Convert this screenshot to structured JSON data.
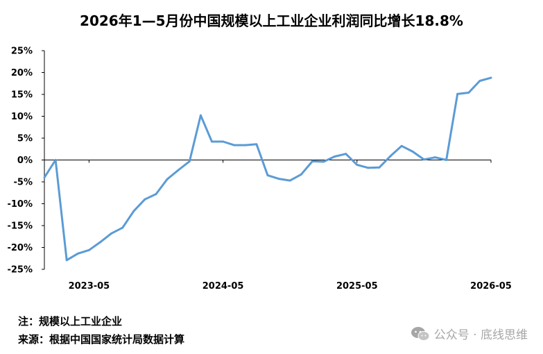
{
  "title": "2026年1—5月份中国规模以上工业企业利润同比增长18.8%",
  "note": "注：规模以上工业企业",
  "source": "来源：根据中国国家统计局数据计算",
  "watermark": {
    "text": "公众号 · 底线思维",
    "icon": "wechat-icon"
  },
  "chart_data": {
    "type": "line",
    "title": "2026年1—5月份中国规模以上工业企业利润同比增长18.8%",
    "xlabel": "",
    "ylabel": "",
    "x_tick_labels": [
      "2023-05",
      "2024-05",
      "2025-05",
      "2026-05"
    ],
    "y_ticks": [
      25,
      20,
      15,
      10,
      5,
      0,
      -5,
      -10,
      -15,
      -20,
      -25
    ],
    "y_tick_labels": [
      "25%",
      "20%",
      "15%",
      "10%",
      "5%",
      "0%",
      "-5%",
      "-10%",
      "-15%",
      "-20%",
      "-25%"
    ],
    "ylim": [
      -25,
      25
    ],
    "unit": "%",
    "grid": false,
    "color": "#5b9bd5",
    "x": [
      "2023-01",
      "2023-02",
      "2023-03",
      "2023-04",
      "2023-05",
      "2023-06",
      "2023-07",
      "2023-08",
      "2023-09",
      "2023-10",
      "2023-11",
      "2023-12",
      "2024-01",
      "2024-02",
      "2024-03",
      "2024-04",
      "2024-05",
      "2024-06",
      "2024-07",
      "2024-08",
      "2024-09",
      "2024-10",
      "2024-11",
      "2024-12",
      "2025-01",
      "2025-02",
      "2025-03",
      "2025-04",
      "2025-05",
      "2025-06",
      "2025-07",
      "2025-08",
      "2025-09",
      "2025-10",
      "2025-11",
      "2025-12",
      "2026-01",
      "2026-02",
      "2026-03",
      "2026-04",
      "2026-05"
    ],
    "values": [
      -4.0,
      0,
      -22.9,
      -21.4,
      -20.6,
      -18.8,
      -16.8,
      -15.5,
      -11.7,
      -9.0,
      -7.8,
      -4.4,
      -2.3,
      -0.3,
      10.2,
      4.2,
      4.2,
      3.4,
      3.4,
      3.6,
      -3.5,
      -4.3,
      -4.7,
      -3.3,
      -0.3,
      -0.4,
      0.8,
      1.4,
      -1.1,
      -1.8,
      -1.7,
      0.9,
      3.2,
      1.9,
      0.1,
      0.6,
      0,
      15.1,
      15.4,
      18.1,
      18.8
    ]
  }
}
